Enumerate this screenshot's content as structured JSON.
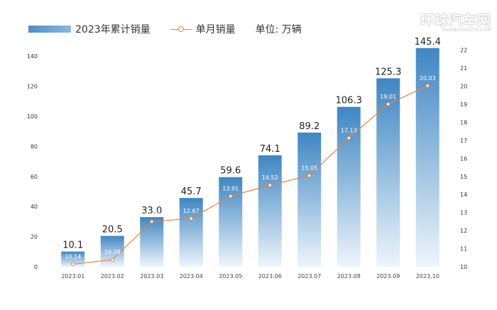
{
  "chart_data": {
    "type": "bar",
    "categories": [
      "2023.01",
      "2023.02",
      "2023.03",
      "2023.04",
      "2023.05",
      "2023.06",
      "2023.07",
      "2023.08",
      "2023.09",
      "2023.10"
    ],
    "series": [
      {
        "name": "2023年累计销量",
        "type": "bar",
        "axis": "left",
        "values": [
          10.1,
          20.5,
          33.0,
          45.7,
          59.6,
          74.1,
          89.2,
          106.3,
          125.3,
          145.4
        ],
        "labels": [
          "10.1",
          "20.5",
          "33.0",
          "45.7",
          "59.6",
          "74.1",
          "89.2",
          "106.3",
          "125.3",
          "145.4"
        ]
      },
      {
        "name": "单月销量",
        "type": "line",
        "axis": "right",
        "values": [
          10.14,
          10.39,
          12.5,
          12.67,
          13.91,
          14.52,
          15.05,
          17.13,
          19.01,
          20.03
        ],
        "labels": [
          "10.14",
          "10.39",
          "12.50",
          "12.67",
          "13.91",
          "14.52",
          "15.05",
          "17.13",
          "19.01",
          "20.03"
        ]
      }
    ],
    "ylim": [
      0,
      150
    ],
    "y_ticks": [
      "0",
      "20",
      "40",
      "60",
      "80",
      "100",
      "120",
      "140"
    ],
    "y2lim": [
      10,
      22.5
    ],
    "y2_ticks": [
      "10",
      "11",
      "12",
      "13",
      "14",
      "15",
      "16",
      "17",
      "18",
      "19",
      "20",
      "21",
      "22"
    ],
    "unit_label": "单位: 万辆",
    "grid": false,
    "legend_position": "top-left",
    "colors": {
      "bar_top": "#3f86c3",
      "bar_bottom": "#eef5fb",
      "line": "#e8833a",
      "marker_fill": "#ffffff"
    }
  },
  "watermark": {
    "text": "环球汽车网",
    "subtext": "HUANQIUAUTO.COM"
  }
}
